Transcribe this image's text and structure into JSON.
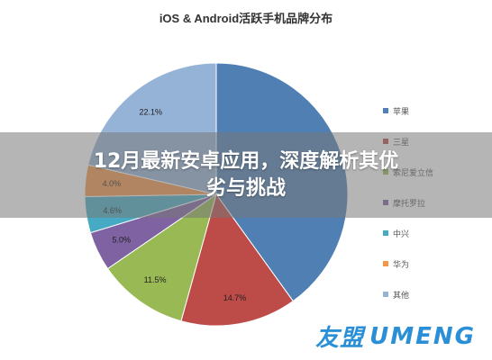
{
  "chart_data": {
    "type": "pie",
    "title": "iOS & Android活跃手机品牌分布",
    "categories": [
      "苹果",
      "三星",
      "索尼爱立信",
      "摩托罗拉",
      "中兴",
      "华为",
      "其他"
    ],
    "values": [
      41.4,
      14.7,
      11.5,
      5.0,
      4.6,
      4.0,
      22.1
    ],
    "data_labels": [
      "",
      "14.7%",
      "11.5%",
      "5.0%",
      "4.6%",
      "4.0%",
      "22.1%"
    ],
    "colors": [
      "#4f7fb3",
      "#bd4b48",
      "#98b954",
      "#7e62a1",
      "#46aac4",
      "#f59645",
      "#95b3d7"
    ],
    "legend_position": "right"
  },
  "legend": [
    {
      "label": "苹果",
      "color": "#4f7fb3"
    },
    {
      "label": "三星",
      "color": "#bd4b48"
    },
    {
      "label": "索尼爱立信",
      "color": "#98b954"
    },
    {
      "label": "摩托罗拉",
      "color": "#7e62a1"
    },
    {
      "label": "中兴",
      "color": "#46aac4"
    },
    {
      "label": "华为",
      "color": "#f59645"
    },
    {
      "label": "其他",
      "color": "#95b3d7"
    }
  ],
  "banner": {
    "line1": "12月最新安卓应用，深度解析其优",
    "line2": "劣与挑战"
  },
  "watermark": {
    "cn": "友盟",
    "latin": "UMENG"
  }
}
